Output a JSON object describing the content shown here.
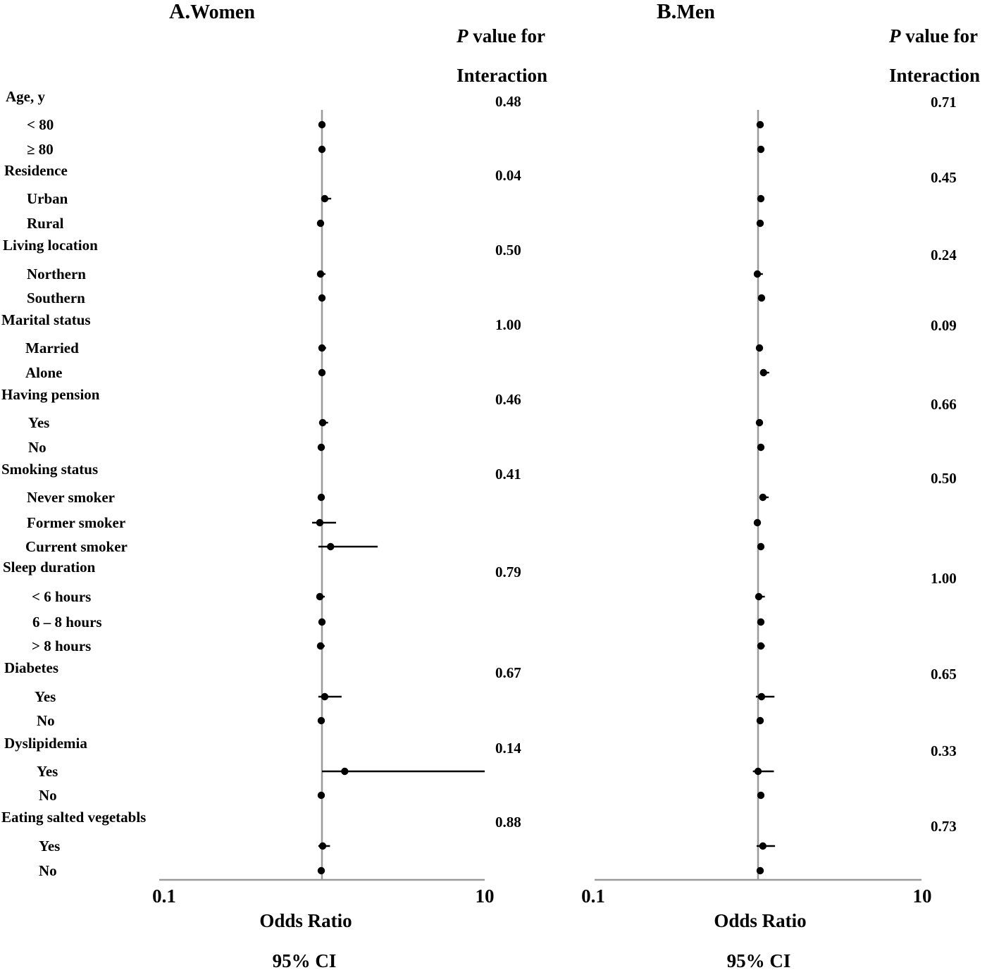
{
  "chart_data": [
    {
      "type": "forest",
      "panel_letter": "A.",
      "title": "Women",
      "p_header_italic": "P",
      "p_header_line1": " value for",
      "p_header_line2": "Interaction",
      "xlabel": "Odds Ratio",
      "xlabel2": "95%  CI",
      "xscale": "log",
      "xlim": [
        0.1,
        10
      ],
      "xticks": [
        "0.1",
        "10"
      ],
      "reference_line": 1,
      "groups": [
        {
          "label": "Age, y",
          "p": "0.48",
          "rows": [
            {
              "label": "< 80",
              "or": 1.0,
              "lo": 0.97,
              "hi": 1.04
            },
            {
              "label": "≥ 80",
              "or": 1.0,
              "lo": 0.97,
              "hi": 1.03
            }
          ]
        },
        {
          "label": "Residence",
          "p": "0.04",
          "rows": [
            {
              "label": "Urban",
              "or": 1.04,
              "lo": 0.99,
              "hi": 1.14
            },
            {
              "label": "Rural",
              "or": 0.98,
              "lo": 0.97,
              "hi": 1.0
            }
          ]
        },
        {
          "label": "Living location",
          "p": "0.50",
          "rows": [
            {
              "label": "Northern",
              "or": 0.98,
              "lo": 0.94,
              "hi": 1.05
            },
            {
              "label": "Southern",
              "or": 1.0,
              "lo": 0.98,
              "hi": 1.02
            }
          ]
        },
        {
          "label": "Marital status",
          "p": "1.00",
          "rows": [
            {
              "label": "Married",
              "or": 1.0,
              "lo": 0.97,
              "hi": 1.06
            },
            {
              "label": "Alone",
              "or": 1.0,
              "lo": 0.98,
              "hi": 1.02
            }
          ]
        },
        {
          "label": "Having pension",
          "p": "0.46",
          "rows": [
            {
              "label": "Yes",
              "or": 1.01,
              "lo": 0.96,
              "hi": 1.09
            },
            {
              "label": "No",
              "or": 0.99,
              "lo": 0.97,
              "hi": 1.02
            }
          ]
        },
        {
          "label": "Smoking status",
          "p": "0.41",
          "rows": [
            {
              "label": "Never smoker",
              "or": 0.99,
              "lo": 0.98,
              "hi": 1.01
            },
            {
              "label": "Former smoker",
              "or": 0.97,
              "lo": 0.87,
              "hi": 1.22
            },
            {
              "label": "Current smoker",
              "or": 1.13,
              "lo": 0.95,
              "hi": 2.2
            }
          ]
        },
        {
          "label": "Sleep duration",
          "p": "0.79",
          "rows": [
            {
              "label": "< 6 hours",
              "or": 0.97,
              "lo": 0.93,
              "hi": 1.04
            },
            {
              "label": "6 – 8 hours",
              "or": 1.0,
              "lo": 0.98,
              "hi": 1.05
            },
            {
              "label": "> 8 hours",
              "or": 0.98,
              "lo": 0.95,
              "hi": 1.04
            }
          ]
        },
        {
          "label": "Diabetes",
          "p": "0.67",
          "rows": [
            {
              "label": "Yes",
              "or": 1.04,
              "lo": 0.95,
              "hi": 1.32
            },
            {
              "label": "No",
              "or": 0.99,
              "lo": 0.98,
              "hi": 1.01
            }
          ]
        },
        {
          "label": "Dyslipidemia",
          "p": "0.14",
          "rows": [
            {
              "label": "Yes",
              "or": 1.38,
              "lo": 1.0,
              "hi": 10.0
            },
            {
              "label": "No",
              "or": 0.99,
              "lo": 0.98,
              "hi": 1.01
            }
          ]
        },
        {
          "label": "Eating salted vegetabls",
          "p": "0.88",
          "rows": [
            {
              "label": "Yes",
              "or": 1.01,
              "lo": 0.95,
              "hi": 1.12
            },
            {
              "label": "No",
              "or": 0.99,
              "lo": 0.98,
              "hi": 1.01
            }
          ]
        }
      ]
    },
    {
      "type": "forest",
      "panel_letter": "B.",
      "title": "Men",
      "p_header_italic": "P",
      "p_header_line1": " value for",
      "p_header_line2": "Interaction",
      "xlabel": "Odds Ratio",
      "xlabel2": "95%  CI",
      "xscale": "log",
      "xlim": [
        0.1,
        10
      ],
      "xticks": [
        "0.1",
        "10"
      ],
      "reference_line": 1,
      "groups": [
        {
          "label": "Age, y",
          "p": "0.71",
          "rows": [
            {
              "or": 1.03,
              "lo": 1.0,
              "hi": 1.08
            },
            {
              "or": 1.04,
              "lo": 1.02,
              "hi": 1.07
            }
          ]
        },
        {
          "label": "Residence",
          "p": "0.45",
          "rows": [
            {
              "or": 1.04,
              "lo": 1.01,
              "hi": 1.09
            },
            {
              "or": 1.03,
              "lo": 1.0,
              "hi": 1.06
            }
          ]
        },
        {
          "label": "Living location",
          "p": "0.24",
          "rows": [
            {
              "or": 0.99,
              "lo": 0.97,
              "hi": 1.07
            },
            {
              "or": 1.05,
              "lo": 1.02,
              "hi": 1.08
            }
          ]
        },
        {
          "label": "Marital status",
          "p": "0.09",
          "rows": [
            {
              "or": 1.02,
              "lo": 1.0,
              "hi": 1.04
            },
            {
              "or": 1.08,
              "lo": 1.03,
              "hi": 1.17
            }
          ]
        },
        {
          "label": "Having pension",
          "p": "0.66",
          "rows": [
            {
              "or": 1.02,
              "lo": 1.0,
              "hi": 1.06
            },
            {
              "or": 1.04,
              "lo": 1.01,
              "hi": 1.07
            }
          ]
        },
        {
          "label": "Smoking status",
          "p": "0.50",
          "rows": [
            {
              "or": 1.07,
              "lo": 1.02,
              "hi": 1.16
            },
            {
              "or": 0.99,
              "lo": 0.97,
              "hi": 1.03
            },
            {
              "or": 1.04,
              "lo": 1.0,
              "hi": 1.09
            }
          ]
        },
        {
          "label": "Sleep duration",
          "p": "1.00",
          "rows": [
            {
              "or": 1.01,
              "lo": 0.96,
              "hi": 1.1
            },
            {
              "or": 1.04,
              "lo": 1.01,
              "hi": 1.07
            },
            {
              "or": 1.04,
              "lo": 1.0,
              "hi": 1.1
            }
          ]
        },
        {
          "label": "Diabetes",
          "p": "0.65",
          "rows": [
            {
              "or": 1.05,
              "lo": 0.97,
              "hi": 1.26
            },
            {
              "or": 1.03,
              "lo": 1.01,
              "hi": 1.05
            }
          ]
        },
        {
          "label": "Dyslipidemia",
          "p": "0.33",
          "rows": [
            {
              "or": 1.0,
              "lo": 0.93,
              "hi": 1.25
            },
            {
              "or": 1.04,
              "lo": 1.02,
              "hi": 1.06
            }
          ]
        },
        {
          "label": "Eating salted vegetabls",
          "p": "0.73",
          "rows": [
            {
              "or": 1.07,
              "lo": 0.98,
              "hi": 1.27
            },
            {
              "or": 1.03,
              "lo": 1.01,
              "hi": 1.05
            }
          ]
        }
      ]
    }
  ]
}
